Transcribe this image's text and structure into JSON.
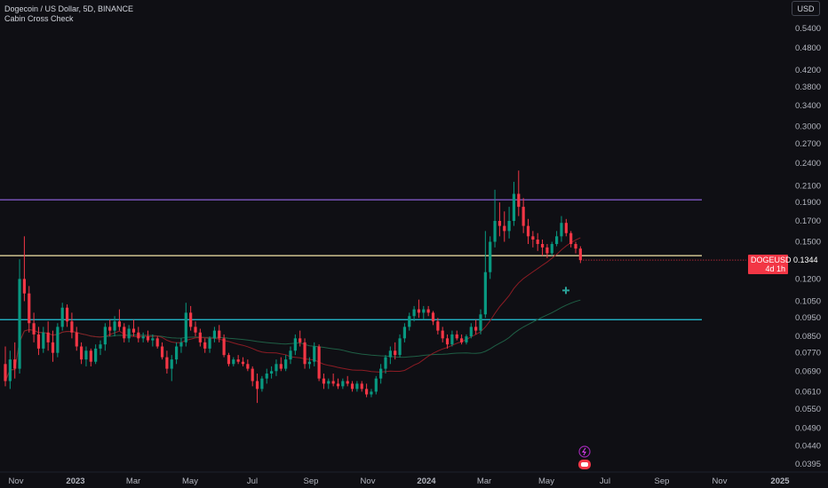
{
  "header": {
    "symbol_title": "Dogecoin / US Dollar, 5D, BINANCE",
    "indicator_name": "Cabin Cross Check",
    "currency_button": "USD"
  },
  "price_tag": {
    "symbol": "DOGEUSD",
    "price": "0.1344",
    "countdown": "4d 1h"
  },
  "colors": {
    "background": "#0f0f14",
    "up_candle": "#089981",
    "down_candle": "#f23645",
    "purple_line": "#7e57c2",
    "yellow_line": "#f5e6a8",
    "cyan_line": "#26c6da",
    "sma_green": "#1f5f45",
    "sma_red": "#8c1c24",
    "price_line": "#f23645"
  },
  "chart_data": {
    "type": "candlestick",
    "symbol": "DOGEUSD",
    "exchange": "BINANCE",
    "interval": "5D",
    "y_scale": "log",
    "y_ticks": [
      "0.5400",
      "0.4800",
      "0.4200",
      "0.3800",
      "0.3400",
      "0.3000",
      "0.2700",
      "0.2400",
      "0.2100",
      "0.1900",
      "0.1700",
      "0.1500",
      "0.1344",
      "0.1200",
      "0.1050",
      "0.0950",
      "0.0850",
      "0.0770",
      "0.0690",
      "0.0610",
      "0.0550",
      "0.0490",
      "0.0440",
      "0.0395"
    ],
    "x_ticks": [
      "Nov",
      "2023",
      "Mar",
      "May",
      "Jul",
      "Sep",
      "Nov",
      "2024",
      "Mar",
      "May",
      "Jul",
      "Sep",
      "Nov",
      "2025"
    ],
    "x_ticks_bold": [
      "2023",
      "2024",
      "2025"
    ],
    "horizontal_lines": [
      {
        "price": 0.193,
        "color": "purple"
      },
      {
        "price": 0.138,
        "color": "yellow"
      },
      {
        "price": 0.094,
        "color": "cyan"
      }
    ],
    "last_price": 0.1344,
    "candles": [
      [
        0.072,
        0.08,
        0.063,
        0.065
      ],
      [
        0.065,
        0.078,
        0.062,
        0.074
      ],
      [
        0.074,
        0.082,
        0.066,
        0.07
      ],
      [
        0.07,
        0.135,
        0.068,
        0.12
      ],
      [
        0.12,
        0.155,
        0.105,
        0.11
      ],
      [
        0.11,
        0.115,
        0.087,
        0.092
      ],
      [
        0.092,
        0.098,
        0.082,
        0.086
      ],
      [
        0.086,
        0.09,
        0.076,
        0.079
      ],
      [
        0.079,
        0.09,
        0.077,
        0.087
      ],
      [
        0.087,
        0.093,
        0.078,
        0.082
      ],
      [
        0.082,
        0.088,
        0.073,
        0.077
      ],
      [
        0.077,
        0.092,
        0.075,
        0.09
      ],
      [
        0.09,
        0.104,
        0.088,
        0.101
      ],
      [
        0.101,
        0.103,
        0.09,
        0.093
      ],
      [
        0.093,
        0.098,
        0.084,
        0.087
      ],
      [
        0.087,
        0.09,
        0.078,
        0.08
      ],
      [
        0.08,
        0.082,
        0.072,
        0.074
      ],
      [
        0.074,
        0.08,
        0.071,
        0.078
      ],
      [
        0.078,
        0.079,
        0.071,
        0.073
      ],
      [
        0.073,
        0.081,
        0.072,
        0.079
      ],
      [
        0.079,
        0.083,
        0.076,
        0.081
      ],
      [
        0.081,
        0.092,
        0.078,
        0.09
      ],
      [
        0.09,
        0.094,
        0.085,
        0.088
      ],
      [
        0.088,
        0.096,
        0.085,
        0.093
      ],
      [
        0.093,
        0.1,
        0.088,
        0.09
      ],
      [
        0.09,
        0.092,
        0.082,
        0.084
      ],
      [
        0.084,
        0.091,
        0.082,
        0.089
      ],
      [
        0.089,
        0.094,
        0.085,
        0.087
      ],
      [
        0.087,
        0.09,
        0.082,
        0.084
      ],
      [
        0.084,
        0.087,
        0.082,
        0.085
      ],
      [
        0.085,
        0.088,
        0.082,
        0.083
      ],
      [
        0.083,
        0.086,
        0.08,
        0.084
      ],
      [
        0.084,
        0.085,
        0.079,
        0.08
      ],
      [
        0.08,
        0.082,
        0.074,
        0.075
      ],
      [
        0.075,
        0.078,
        0.068,
        0.07
      ],
      [
        0.07,
        0.076,
        0.065,
        0.074
      ],
      [
        0.074,
        0.082,
        0.072,
        0.08
      ],
      [
        0.08,
        0.084,
        0.077,
        0.082
      ],
      [
        0.082,
        0.104,
        0.08,
        0.098
      ],
      [
        0.098,
        0.102,
        0.088,
        0.09
      ],
      [
        0.09,
        0.093,
        0.085,
        0.087
      ],
      [
        0.087,
        0.089,
        0.08,
        0.082
      ],
      [
        0.082,
        0.084,
        0.077,
        0.079
      ],
      [
        0.079,
        0.085,
        0.077,
        0.084
      ],
      [
        0.084,
        0.09,
        0.082,
        0.088
      ],
      [
        0.088,
        0.091,
        0.082,
        0.084
      ],
      [
        0.084,
        0.086,
        0.075,
        0.076
      ],
      [
        0.076,
        0.077,
        0.071,
        0.072
      ],
      [
        0.072,
        0.075,
        0.071,
        0.074
      ],
      [
        0.074,
        0.076,
        0.072,
        0.073
      ],
      [
        0.073,
        0.075,
        0.071,
        0.072
      ],
      [
        0.072,
        0.074,
        0.069,
        0.07
      ],
      [
        0.07,
        0.071,
        0.063,
        0.065
      ],
      [
        0.065,
        0.068,
        0.057,
        0.062
      ],
      [
        0.062,
        0.067,
        0.061,
        0.066
      ],
      [
        0.066,
        0.07,
        0.064,
        0.068
      ],
      [
        0.068,
        0.071,
        0.066,
        0.069
      ],
      [
        0.069,
        0.074,
        0.067,
        0.072
      ],
      [
        0.072,
        0.075,
        0.069,
        0.07
      ],
      [
        0.07,
        0.076,
        0.069,
        0.074
      ],
      [
        0.074,
        0.08,
        0.072,
        0.078
      ],
      [
        0.078,
        0.086,
        0.076,
        0.084
      ],
      [
        0.084,
        0.088,
        0.08,
        0.082
      ],
      [
        0.082,
        0.084,
        0.07,
        0.072
      ],
      [
        0.072,
        0.075,
        0.07,
        0.073
      ],
      [
        0.073,
        0.082,
        0.071,
        0.08
      ],
      [
        0.08,
        0.081,
        0.065,
        0.066
      ],
      [
        0.066,
        0.068,
        0.062,
        0.064
      ],
      [
        0.064,
        0.066,
        0.062,
        0.065
      ],
      [
        0.065,
        0.068,
        0.063,
        0.064
      ],
      [
        0.064,
        0.066,
        0.062,
        0.063
      ],
      [
        0.063,
        0.066,
        0.062,
        0.065
      ],
      [
        0.065,
        0.067,
        0.063,
        0.064
      ],
      [
        0.064,
        0.065,
        0.061,
        0.062
      ],
      [
        0.062,
        0.065,
        0.061,
        0.064
      ],
      [
        0.064,
        0.065,
        0.061,
        0.062
      ],
      [
        0.062,
        0.064,
        0.059,
        0.06
      ],
      [
        0.06,
        0.062,
        0.059,
        0.061
      ],
      [
        0.061,
        0.067,
        0.06,
        0.066
      ],
      [
        0.066,
        0.072,
        0.064,
        0.07
      ],
      [
        0.07,
        0.076,
        0.068,
        0.075
      ],
      [
        0.075,
        0.08,
        0.072,
        0.078
      ],
      [
        0.078,
        0.082,
        0.074,
        0.076
      ],
      [
        0.076,
        0.086,
        0.075,
        0.084
      ],
      [
        0.084,
        0.092,
        0.082,
        0.09
      ],
      [
        0.09,
        0.098,
        0.088,
        0.096
      ],
      [
        0.096,
        0.102,
        0.093,
        0.1
      ],
      [
        0.1,
        0.106,
        0.095,
        0.098
      ],
      [
        0.098,
        0.102,
        0.094,
        0.1
      ],
      [
        0.1,
        0.102,
        0.096,
        0.098
      ],
      [
        0.098,
        0.099,
        0.091,
        0.093
      ],
      [
        0.093,
        0.095,
        0.086,
        0.088
      ],
      [
        0.088,
        0.09,
        0.082,
        0.084
      ],
      [
        0.084,
        0.086,
        0.079,
        0.081
      ],
      [
        0.081,
        0.088,
        0.08,
        0.086
      ],
      [
        0.086,
        0.088,
        0.083,
        0.084
      ],
      [
        0.084,
        0.086,
        0.081,
        0.082
      ],
      [
        0.082,
        0.086,
        0.081,
        0.085
      ],
      [
        0.085,
        0.092,
        0.084,
        0.09
      ],
      [
        0.09,
        0.094,
        0.086,
        0.088
      ],
      [
        0.088,
        0.1,
        0.086,
        0.097
      ],
      [
        0.097,
        0.16,
        0.095,
        0.125
      ],
      [
        0.125,
        0.155,
        0.12,
        0.15
      ],
      [
        0.15,
        0.205,
        0.145,
        0.17
      ],
      [
        0.17,
        0.19,
        0.155,
        0.165
      ],
      [
        0.165,
        0.18,
        0.15,
        0.16
      ],
      [
        0.16,
        0.185,
        0.153,
        0.17
      ],
      [
        0.17,
        0.215,
        0.165,
        0.2
      ],
      [
        0.2,
        0.23,
        0.175,
        0.185
      ],
      [
        0.185,
        0.195,
        0.158,
        0.165
      ],
      [
        0.165,
        0.172,
        0.148,
        0.155
      ],
      [
        0.155,
        0.16,
        0.145,
        0.152
      ],
      [
        0.152,
        0.158,
        0.142,
        0.148
      ],
      [
        0.148,
        0.152,
        0.138,
        0.145
      ],
      [
        0.145,
        0.148,
        0.136,
        0.14
      ],
      [
        0.14,
        0.15,
        0.138,
        0.148
      ],
      [
        0.148,
        0.16,
        0.146,
        0.155
      ],
      [
        0.155,
        0.175,
        0.15,
        0.168
      ],
      [
        0.168,
        0.172,
        0.155,
        0.158
      ],
      [
        0.158,
        0.16,
        0.145,
        0.148
      ],
      [
        0.148,
        0.15,
        0.14,
        0.144
      ],
      [
        0.144,
        0.146,
        0.132,
        0.1344
      ]
    ]
  }
}
